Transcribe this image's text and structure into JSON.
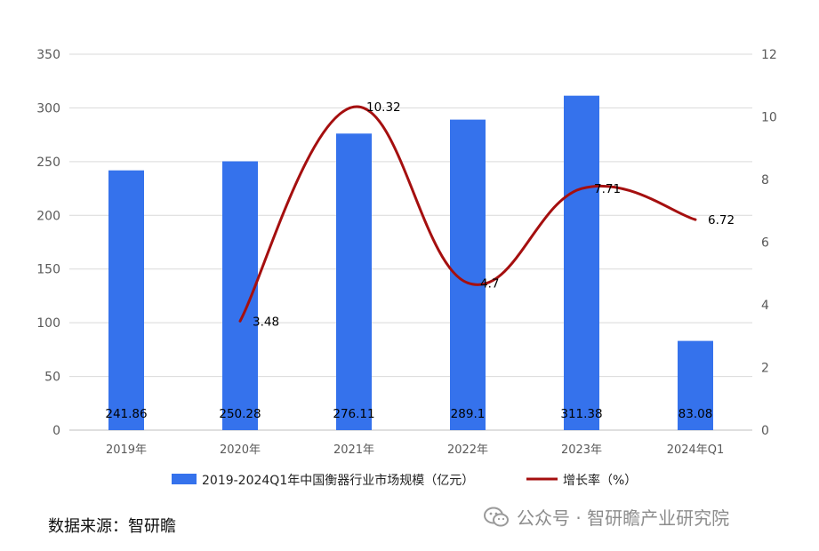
{
  "chart_data": {
    "type": "bar+line",
    "categories": [
      "2019年",
      "2020年",
      "2021年",
      "2022年",
      "2023年",
      "2024年Q1"
    ],
    "series": [
      {
        "name": "2019-2024Q1年中国衡器行业市场规模（亿元）",
        "type": "bar",
        "axis": "left",
        "color": "#3572EC",
        "values": [
          241.86,
          250.28,
          276.11,
          289.1,
          311.38,
          83.08
        ],
        "labels": [
          "241.86",
          "250.28",
          "276.11",
          "289.1",
          "311.38",
          "83.08"
        ]
      },
      {
        "name": "增长率（%）",
        "type": "line",
        "axis": "right",
        "color": "#A50F0F",
        "values": [
          null,
          3.48,
          10.32,
          4.7,
          7.71,
          6.72
        ],
        "labels": [
          "",
          "3.48",
          "10.32",
          "4.7",
          "7.71",
          "6.72"
        ]
      }
    ],
    "y_left": {
      "min": 0,
      "max": 350,
      "ticks": [
        "0",
        "50",
        "100",
        "150",
        "200",
        "250",
        "300",
        "350"
      ]
    },
    "y_right": {
      "min": 0,
      "max": 12,
      "ticks": [
        "0",
        "2",
        "4",
        "6",
        "8",
        "10",
        "12"
      ]
    },
    "grid": true,
    "legend": "bottom"
  },
  "footer": {
    "source": "数据来源：智研瞻",
    "watermark": "公众号 · 智研瞻产业研究院",
    "watermark_icon": "wechat-icon"
  }
}
